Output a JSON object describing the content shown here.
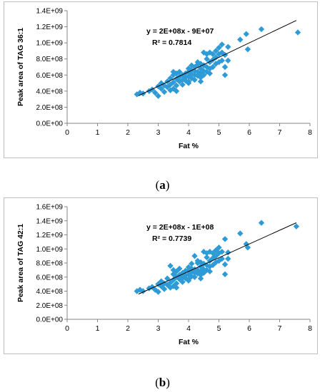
{
  "captions": [
    {
      "open": "(",
      "letter": "a",
      "close": ")"
    },
    {
      "open": "(",
      "letter": "b",
      "close": ")"
    }
  ],
  "chart_data": [
    {
      "type": "scatter",
      "title": "",
      "xlabel": "Fat %",
      "ylabel": "Peak area of TAG 36:1",
      "xlim": [
        0,
        8
      ],
      "ylim": [
        0,
        1400000000
      ],
      "x_ticks": [
        "0",
        "1",
        "2",
        "3",
        "4",
        "5",
        "6",
        "7",
        "8"
      ],
      "y_ticks": [
        "0.0E+00",
        "2.0E+08",
        "4.0E+08",
        "6.0E+08",
        "8.0E+08",
        "1.0E+09",
        "1.2E+09",
        "1.4E+09"
      ],
      "grid": false,
      "legend": "none",
      "marker_color": "#2e9bd6",
      "trendline": {
        "slope": 180000000,
        "intercept": -80000000,
        "x_range": [
          2.35,
          7.55
        ],
        "color": "#000000"
      },
      "equation": "y = 2E+08x - 9E+07",
      "r2": "R² = 0.7814",
      "points": [
        [
          2.4,
          380000000
        ],
        [
          2.5,
          370000000
        ],
        [
          2.7,
          400000000
        ],
        [
          2.8,
          420000000
        ],
        [
          2.9,
          380000000
        ],
        [
          3.0,
          460000000
        ],
        [
          3.1,
          430000000
        ],
        [
          3.1,
          500000000
        ],
        [
          3.2,
          390000000
        ],
        [
          3.2,
          470000000
        ],
        [
          3.3,
          450000000
        ],
        [
          3.3,
          520000000
        ],
        [
          3.4,
          410000000
        ],
        [
          3.4,
          480000000
        ],
        [
          3.4,
          560000000
        ],
        [
          3.5,
          430000000
        ],
        [
          3.5,
          510000000
        ],
        [
          3.5,
          600000000
        ],
        [
          3.5,
          640000000
        ],
        [
          3.6,
          470000000
        ],
        [
          3.6,
          550000000
        ],
        [
          3.6,
          620000000
        ],
        [
          3.7,
          520000000
        ],
        [
          3.7,
          580000000
        ],
        [
          3.7,
          640000000
        ],
        [
          3.8,
          480000000
        ],
        [
          3.8,
          540000000
        ],
        [
          3.8,
          600000000
        ],
        [
          3.9,
          530000000
        ],
        [
          3.9,
          570000000
        ],
        [
          3.9,
          620000000
        ],
        [
          4.0,
          520000000
        ],
        [
          4.0,
          580000000
        ],
        [
          4.0,
          640000000
        ],
        [
          4.0,
          680000000
        ],
        [
          4.1,
          560000000
        ],
        [
          4.1,
          610000000
        ],
        [
          4.1,
          720000000
        ],
        [
          4.1,
          660000000
        ],
        [
          4.2,
          540000000
        ],
        [
          4.2,
          600000000
        ],
        [
          4.2,
          650000000
        ],
        [
          4.2,
          700000000
        ],
        [
          4.3,
          590000000
        ],
        [
          4.3,
          640000000
        ],
        [
          4.3,
          730000000
        ],
        [
          4.3,
          760000000
        ],
        [
          4.4,
          570000000
        ],
        [
          4.4,
          620000000
        ],
        [
          4.4,
          680000000
        ],
        [
          4.4,
          740000000
        ],
        [
          4.5,
          600000000
        ],
        [
          4.5,
          650000000
        ],
        [
          4.5,
          720000000
        ],
        [
          4.5,
          880000000
        ],
        [
          4.6,
          640000000
        ],
        [
          4.6,
          700000000
        ],
        [
          4.6,
          800000000
        ],
        [
          4.6,
          860000000
        ],
        [
          4.7,
          620000000
        ],
        [
          4.7,
          680000000
        ],
        [
          4.7,
          760000000
        ],
        [
          4.7,
          880000000
        ],
        [
          4.8,
          700000000
        ],
        [
          4.8,
          790000000
        ],
        [
          4.8,
          860000000
        ],
        [
          4.9,
          740000000
        ],
        [
          4.9,
          820000000
        ],
        [
          4.9,
          900000000
        ],
        [
          5.0,
          760000000
        ],
        [
          5.0,
          860000000
        ],
        [
          5.0,
          940000000
        ],
        [
          5.1,
          780000000
        ],
        [
          5.1,
          880000000
        ],
        [
          5.1,
          980000000
        ],
        [
          5.2,
          600000000
        ],
        [
          5.2,
          700000000
        ],
        [
          5.2,
          850000000
        ],
        [
          5.3,
          780000000
        ],
        [
          5.3,
          950000000
        ],
        [
          5.7,
          1040000000
        ],
        [
          5.9,
          1110000000
        ],
        [
          5.95,
          920000000
        ],
        [
          6.4,
          1170000000
        ],
        [
          7.6,
          1130000000
        ],
        [
          2.3,
          360000000
        ],
        [
          3.0,
          340000000
        ],
        [
          3.6,
          400000000
        ],
        [
          4.0,
          500000000
        ],
        [
          4.4,
          520000000
        ]
      ]
    },
    {
      "type": "scatter",
      "title": "",
      "xlabel": "Fat %",
      "ylabel": "Peak area of TAG 42:1",
      "xlim": [
        0,
        8
      ],
      "ylim": [
        0,
        1600000000
      ],
      "x_ticks": [
        "0",
        "1",
        "2",
        "3",
        "4",
        "5",
        "6",
        "7",
        "8"
      ],
      "y_ticks": [
        "0.0E+00",
        "2.0E+08",
        "4.0E+08",
        "6.0E+08",
        "8.0E+08",
        "1.0E+09",
        "1.2E+09",
        "1.4E+09",
        "1.6E+09"
      ],
      "grid": false,
      "legend": "none",
      "marker_color": "#2e9bd6",
      "trendline": {
        "slope": 195000000,
        "intercept": -100000000,
        "x_range": [
          2.35,
          7.55
        ],
        "color": "#000000"
      },
      "equation": "y = 2E+08x - 1E+08",
      "r2": "R² = 0.7739",
      "points": [
        [
          2.4,
          420000000
        ],
        [
          2.5,
          400000000
        ],
        [
          2.7,
          440000000
        ],
        [
          2.8,
          460000000
        ],
        [
          2.9,
          420000000
        ],
        [
          3.0,
          500000000
        ],
        [
          3.1,
          470000000
        ],
        [
          3.1,
          540000000
        ],
        [
          3.2,
          430000000
        ],
        [
          3.2,
          510000000
        ],
        [
          3.3,
          490000000
        ],
        [
          3.3,
          580000000
        ],
        [
          3.4,
          450000000
        ],
        [
          3.4,
          520000000
        ],
        [
          3.4,
          760000000
        ],
        [
          3.5,
          470000000
        ],
        [
          3.5,
          560000000
        ],
        [
          3.5,
          640000000
        ],
        [
          3.5,
          700000000
        ],
        [
          3.6,
          510000000
        ],
        [
          3.6,
          600000000
        ],
        [
          3.6,
          680000000
        ],
        [
          3.7,
          570000000
        ],
        [
          3.7,
          630000000
        ],
        [
          3.7,
          720000000
        ],
        [
          3.8,
          530000000
        ],
        [
          3.8,
          590000000
        ],
        [
          3.8,
          660000000
        ],
        [
          3.9,
          580000000
        ],
        [
          3.9,
          620000000
        ],
        [
          3.9,
          690000000
        ],
        [
          4.0,
          570000000
        ],
        [
          4.0,
          640000000
        ],
        [
          4.0,
          700000000
        ],
        [
          4.0,
          740000000
        ],
        [
          4.1,
          610000000
        ],
        [
          4.1,
          670000000
        ],
        [
          4.1,
          790000000
        ],
        [
          4.1,
          720000000
        ],
        [
          4.2,
          600000000
        ],
        [
          4.2,
          660000000
        ],
        [
          4.2,
          710000000
        ],
        [
          4.2,
          900000000
        ],
        [
          4.3,
          650000000
        ],
        [
          4.3,
          700000000
        ],
        [
          4.3,
          800000000
        ],
        [
          4.3,
          830000000
        ],
        [
          4.4,
          630000000
        ],
        [
          4.4,
          680000000
        ],
        [
          4.4,
          750000000
        ],
        [
          4.4,
          810000000
        ],
        [
          4.5,
          660000000
        ],
        [
          4.5,
          710000000
        ],
        [
          4.5,
          790000000
        ],
        [
          4.5,
          960000000
        ],
        [
          4.6,
          700000000
        ],
        [
          4.6,
          770000000
        ],
        [
          4.6,
          880000000
        ],
        [
          4.6,
          940000000
        ],
        [
          4.7,
          680000000
        ],
        [
          4.7,
          750000000
        ],
        [
          4.7,
          830000000
        ],
        [
          4.7,
          960000000
        ],
        [
          4.8,
          770000000
        ],
        [
          4.8,
          870000000
        ],
        [
          4.8,
          940000000
        ],
        [
          4.9,
          810000000
        ],
        [
          4.9,
          900000000
        ],
        [
          4.9,
          980000000
        ],
        [
          5.0,
          830000000
        ],
        [
          5.0,
          940000000
        ],
        [
          5.0,
          1020000000
        ],
        [
          5.1,
          860000000
        ],
        [
          5.1,
          960000000
        ],
        [
          5.2,
          640000000
        ],
        [
          5.2,
          780000000
        ],
        [
          5.2,
          1140000000
        ],
        [
          5.3,
          860000000
        ],
        [
          5.3,
          950000000
        ],
        [
          5.7,
          1220000000
        ],
        [
          5.9,
          1070000000
        ],
        [
          5.95,
          1020000000
        ],
        [
          6.4,
          1370000000
        ],
        [
          7.55,
          1320000000
        ],
        [
          2.3,
          400000000
        ],
        [
          3.0,
          390000000
        ],
        [
          3.6,
          450000000
        ],
        [
          4.0,
          550000000
        ],
        [
          4.4,
          580000000
        ]
      ]
    }
  ]
}
